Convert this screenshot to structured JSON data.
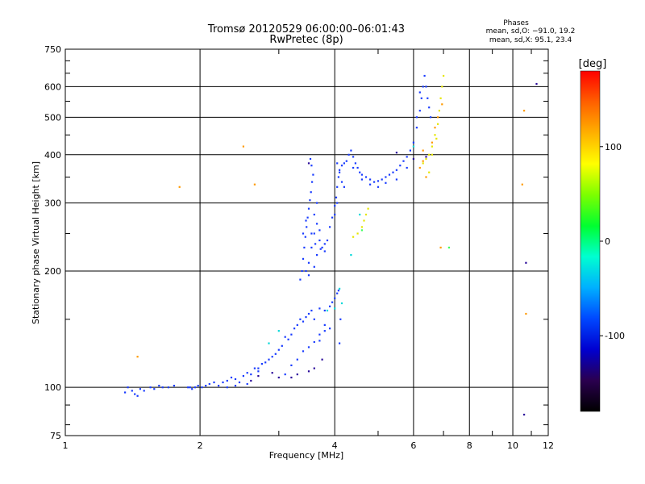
{
  "chart_data": {
    "type": "scatter",
    "title": "Tromsø 20120529 06:00:00–06:01:43",
    "subtitle": "RwPretec (8p)",
    "xlabel": "Frequency [MHz]",
    "ylabel": "Stationary phase Virtual Height [km]",
    "x_scale": "log",
    "y_scale": "log",
    "xlim": [
      1,
      12
    ],
    "ylim": [
      75,
      750
    ],
    "x_ticks": [
      1,
      2,
      4,
      6,
      8,
      10,
      12
    ],
    "y_ticks": [
      75,
      100,
      200,
      300,
      400,
      500,
      600,
      750
    ],
    "grid": true,
    "phase_stats": {
      "heading": "Phases",
      "line1": "mean, sd,O: −91.0, 19.2",
      "line2": "mean, sd,X:  95.1, 23.4"
    },
    "colorbar": {
      "label": "[deg]",
      "range": [
        -180,
        180
      ],
      "ticks": [
        100,
        0,
        -100
      ],
      "tick_labels": [
        "100",
        "0",
        "-100"
      ],
      "colors": [
        "#000000",
        "#2a004f",
        "#0000d0",
        "#0048ff",
        "#00b0ff",
        "#00ffd0",
        "#00ff30",
        "#7cff00",
        "#ffff00",
        "#ffb000",
        "#ff6000",
        "#ff0000"
      ]
    },
    "series": [
      {
        "phase_deg": -95,
        "color": "#1a3cff",
        "points": [
          [
            1.36,
            97
          ],
          [
            1.38,
            100
          ],
          [
            1.41,
            98
          ],
          [
            1.43,
            96
          ],
          [
            1.45,
            95
          ],
          [
            1.47,
            99
          ],
          [
            1.5,
            98
          ],
          [
            1.55,
            100
          ],
          [
            1.58,
            99
          ],
          [
            1.62,
            101
          ],
          [
            1.65,
            100
          ],
          [
            1.7,
            100
          ],
          [
            1.75,
            101
          ],
          [
            1.88,
            100
          ],
          [
            1.92,
            99
          ],
          [
            1.95,
            100
          ],
          [
            1.98,
            101
          ],
          [
            2.02,
            100
          ],
          [
            2.06,
            101
          ],
          [
            2.1,
            102
          ],
          [
            2.15,
            103
          ],
          [
            2.2,
            101
          ],
          [
            2.25,
            103
          ],
          [
            2.3,
            104
          ],
          [
            2.35,
            106
          ],
          [
            2.4,
            105
          ],
          [
            2.45,
            103
          ],
          [
            2.5,
            107
          ],
          [
            2.55,
            109
          ],
          [
            2.6,
            108
          ],
          [
            2.65,
            112
          ],
          [
            2.7,
            110
          ],
          [
            2.75,
            115
          ],
          [
            2.8,
            116
          ],
          [
            2.85,
            118
          ],
          [
            2.9,
            120
          ],
          [
            2.95,
            122
          ],
          [
            3.0,
            125
          ],
          [
            3.05,
            128
          ],
          [
            3.1,
            135
          ],
          [
            3.15,
            133
          ],
          [
            3.2,
            137
          ],
          [
            3.25,
            142
          ],
          [
            3.3,
            145
          ],
          [
            3.35,
            150
          ],
          [
            3.4,
            148
          ],
          [
            3.45,
            152
          ],
          [
            3.5,
            155
          ],
          [
            3.55,
            158
          ],
          [
            3.6,
            150
          ],
          [
            3.7,
            160
          ],
          [
            3.8,
            158
          ],
          [
            3.9,
            162
          ],
          [
            3.95,
            166
          ],
          [
            3.1,
            108
          ],
          [
            3.2,
            114
          ],
          [
            3.3,
            118
          ],
          [
            3.4,
            124
          ],
          [
            3.5,
            127
          ],
          [
            3.6,
            131
          ],
          [
            3.7,
            137
          ],
          [
            3.8,
            140
          ],
          [
            3.35,
            190
          ],
          [
            3.38,
            200
          ],
          [
            3.4,
            215
          ],
          [
            3.42,
            230
          ],
          [
            3.44,
            245
          ],
          [
            3.46,
            260
          ],
          [
            3.48,
            275
          ],
          [
            3.5,
            290
          ],
          [
            3.52,
            305
          ],
          [
            3.54,
            320
          ],
          [
            3.56,
            340
          ],
          [
            3.58,
            355
          ],
          [
            3.55,
            375
          ],
          [
            3.53,
            390
          ],
          [
            3.5,
            210
          ],
          [
            3.55,
            230
          ],
          [
            3.6,
            250
          ],
          [
            3.65,
            265
          ],
          [
            3.7,
            240
          ],
          [
            3.75,
            230
          ],
          [
            3.8,
            235
          ],
          [
            3.85,
            240
          ],
          [
            3.6,
            280
          ],
          [
            3.65,
            300
          ],
          [
            3.45,
            270
          ],
          [
            3.4,
            250
          ],
          [
            3.7,
            255
          ],
          [
            3.65,
            220
          ],
          [
            3.6,
            205
          ],
          [
            3.5,
            195
          ],
          [
            3.45,
            200
          ],
          [
            3.55,
            250
          ],
          [
            3.62,
            235
          ],
          [
            3.72,
            228
          ],
          [
            3.8,
            225
          ],
          [
            3.9,
            260
          ],
          [
            3.95,
            275
          ],
          [
            4.0,
            295
          ],
          [
            4.03,
            310
          ],
          [
            4.05,
            330
          ],
          [
            4.08,
            350
          ],
          [
            4.1,
            365
          ],
          [
            4.15,
            375
          ],
          [
            4.2,
            380
          ],
          [
            4.25,
            385
          ],
          [
            4.3,
            400
          ],
          [
            4.35,
            410
          ],
          [
            4.4,
            395
          ],
          [
            4.45,
            380
          ],
          [
            4.5,
            370
          ],
          [
            4.55,
            360
          ],
          [
            4.6,
            355
          ],
          [
            4.7,
            350
          ],
          [
            4.8,
            345
          ],
          [
            4.9,
            340
          ],
          [
            5.0,
            342
          ],
          [
            5.1,
            345
          ],
          [
            5.2,
            350
          ],
          [
            5.3,
            355
          ],
          [
            5.4,
            360
          ],
          [
            5.5,
            365
          ],
          [
            5.6,
            375
          ],
          [
            5.7,
            385
          ],
          [
            5.8,
            395
          ],
          [
            5.9,
            410
          ],
          [
            6.0,
            430
          ],
          [
            6.1,
            470
          ],
          [
            6.2,
            520
          ],
          [
            6.25,
            560
          ],
          [
            6.3,
            600
          ],
          [
            6.35,
            640
          ],
          [
            6.4,
            600
          ],
          [
            6.45,
            560
          ],
          [
            6.5,
            530
          ],
          [
            6.55,
            500
          ],
          [
            4.05,
            380
          ],
          [
            4.1,
            360
          ],
          [
            4.15,
            340
          ],
          [
            4.2,
            330
          ],
          [
            4.4,
            370
          ],
          [
            4.6,
            345
          ],
          [
            4.8,
            335
          ],
          [
            5.0,
            330
          ],
          [
            5.2,
            338
          ],
          [
            5.5,
            345
          ],
          [
            5.8,
            370
          ],
          [
            6.1,
            500
          ],
          [
            6.2,
            580
          ],
          [
            4.0,
            280
          ],
          [
            4.05,
            300
          ],
          [
            4.0,
            170
          ],
          [
            4.05,
            175
          ],
          [
            4.08,
            178
          ],
          [
            4.1,
            130
          ],
          [
            4.12,
            150
          ],
          [
            3.7,
            132
          ],
          [
            3.8,
            145
          ],
          [
            3.9,
            142
          ],
          [
            2.7,
            112
          ],
          [
            2.55,
            102
          ],
          [
            2.4,
            101
          ],
          [
            2.3,
            100
          ],
          [
            1.9,
            100
          ]
        ]
      },
      {
        "phase_deg": -130,
        "color": "#2a0a9a",
        "points": [
          [
            2.6,
            104
          ],
          [
            2.7,
            107
          ],
          [
            2.9,
            109
          ],
          [
            3.0,
            106
          ],
          [
            3.2,
            106
          ],
          [
            3.3,
            108
          ],
          [
            3.5,
            110
          ],
          [
            3.6,
            112
          ],
          [
            3.75,
            118
          ],
          [
            3.5,
            380
          ],
          [
            5.5,
            405
          ],
          [
            6.4,
            395
          ],
          [
            10.7,
            210
          ],
          [
            10.6,
            85
          ],
          [
            11.3,
            610
          ],
          [
            6.0,
            390
          ]
        ]
      },
      {
        "phase_deg": 105,
        "color": "#e6e600",
        "points": [
          [
            4.4,
            245
          ],
          [
            4.5,
            250
          ],
          [
            4.6,
            260
          ],
          [
            4.65,
            270
          ],
          [
            4.7,
            280
          ],
          [
            4.75,
            290
          ],
          [
            6.3,
            380
          ],
          [
            6.4,
            390
          ],
          [
            6.5,
            400
          ],
          [
            6.6,
            420
          ],
          [
            6.7,
            450
          ],
          [
            6.8,
            480
          ],
          [
            6.85,
            520
          ],
          [
            6.9,
            560
          ],
          [
            6.95,
            600
          ],
          [
            7.0,
            640
          ],
          [
            6.6,
            400
          ],
          [
            6.75,
            440
          ],
          [
            6.5,
            360
          ]
        ]
      },
      {
        "phase_deg": 140,
        "color": "#ff9a00",
        "points": [
          [
            6.2,
            370
          ],
          [
            6.3,
            385
          ],
          [
            6.6,
            430
          ],
          [
            6.7,
            470
          ],
          [
            6.8,
            500
          ],
          [
            6.95,
            540
          ],
          [
            6.3,
            410
          ],
          [
            6.4,
            350
          ],
          [
            2.5,
            420
          ],
          [
            2.65,
            335
          ],
          [
            1.8,
            330
          ],
          [
            10.5,
            335
          ],
          [
            10.6,
            520
          ],
          [
            10.7,
            155
          ],
          [
            1.45,
            120
          ],
          [
            6.9,
            230
          ]
        ]
      },
      {
        "phase_deg": 5,
        "color": "#00d8d8",
        "points": [
          [
            3.85,
            158
          ],
          [
            4.0,
            160
          ],
          [
            4.1,
            180
          ],
          [
            4.15,
            165
          ],
          [
            2.85,
            130
          ],
          [
            3.0,
            140
          ],
          [
            4.55,
            280
          ],
          [
            4.35,
            220
          ],
          [
            6.0,
            420
          ]
        ]
      },
      {
        "phase_deg": 40,
        "color": "#40ff60",
        "points": [
          [
            7.2,
            230
          ],
          [
            4.6,
            255
          ]
        ]
      }
    ]
  }
}
